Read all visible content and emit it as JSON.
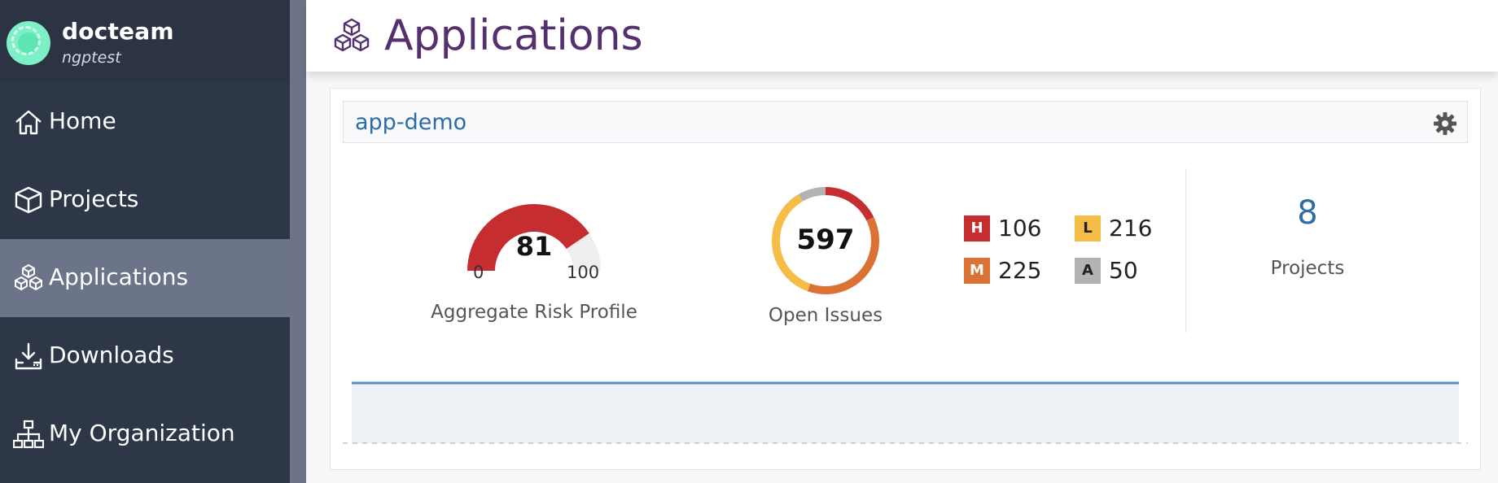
{
  "profile": {
    "name": "docteam",
    "subtitle": "ngptest"
  },
  "nav": [
    {
      "label": "Home",
      "icon": "home-icon",
      "active": false
    },
    {
      "label": "Projects",
      "icon": "box-icon",
      "active": false
    },
    {
      "label": "Applications",
      "icon": "cubes-icon",
      "active": true
    },
    {
      "label": "Downloads",
      "icon": "download-icon",
      "active": false
    },
    {
      "label": "My Organization",
      "icon": "sitemap-icon",
      "active": false
    }
  ],
  "header": {
    "title": "Applications",
    "icon": "cubes-icon"
  },
  "app_card": {
    "name": "app-demo",
    "settings_icon": "gear-icon",
    "risk": {
      "value": 81,
      "min_label": "0",
      "max_label": "100",
      "caption": "Aggregate Risk Profile"
    },
    "issues": {
      "total": "597",
      "caption": "Open Issues"
    },
    "severity": {
      "high": {
        "badge": "H",
        "count": "106",
        "value": 106,
        "color": "#c62d31"
      },
      "medium": {
        "badge": "M",
        "count": "225",
        "value": 225,
        "color": "#dc7134"
      },
      "low": {
        "badge": "L",
        "count": "216",
        "value": 216,
        "color": "#f5bc47"
      },
      "analyze": {
        "badge": "A",
        "count": "50",
        "value": 50,
        "color": "#b3b3b3"
      }
    },
    "projects": {
      "count": "8",
      "label": "Projects"
    }
  },
  "colors": {
    "brand": "#55306f",
    "link": "#2e6da4",
    "risk": "#c62d31",
    "trend_line": "#5b8fc7",
    "trend_fill": "#eef2f7"
  }
}
